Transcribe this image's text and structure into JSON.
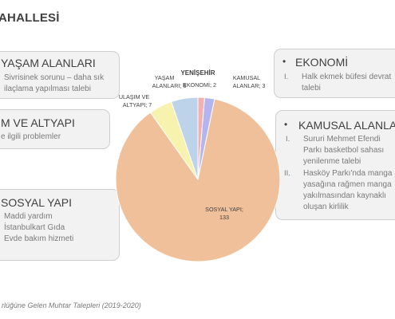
{
  "slide": {
    "title": "AHALLESİ",
    "footer": "rlüğüne Gelen Muhtar Talepleri (2019-2020)"
  },
  "boxes": {
    "yasam": {
      "heading": "YAŞAM ALANLARI",
      "line1": "Sivrisinek sorunu – daha sık",
      "line2": "ilaçlama yapılması talebi"
    },
    "altyapi": {
      "heading": "M VE ALTYAPI",
      "line1": "e ilgili problemler"
    },
    "sosyal": {
      "heading": "SOSYAL YAPI",
      "items": [
        "Maddi yardım",
        "İstanbulkart Gıda",
        "Evde bakım hizmeti"
      ]
    },
    "ekonomi": {
      "bullet": "•",
      "heading": "EKONOMİ",
      "numeral": "I.",
      "line1": "Halk ekmek büfesi devrat",
      "line2": "talebi"
    },
    "kamusal": {
      "bullet": "•",
      "heading": "KAMUSAL ALANLA",
      "n1": "I.",
      "n2": "II.",
      "item1": [
        "Sururi Mehmet Efendi",
        "Parkı basketbol sahası",
        "yenilenme talebi"
      ],
      "item2": [
        "Hasköy Parkı'nda manga",
        "yasağına rağmen manga",
        "yakılmasından kaynaklı",
        "oluşan kirlilik"
      ]
    }
  },
  "chart_data": {
    "type": "pie",
    "title": "YENİŞEHİR",
    "slices": [
      {
        "name": "EKONOMİ",
        "value": 2,
        "label": "EKONOMİ; 2",
        "color": "#f4b0b0"
      },
      {
        "name": "KAMUSAL ALANLAR",
        "value": 3,
        "label_line1": "KAMUSAL",
        "label_line2": "ALANLAR; 3",
        "color": "#b4b4ee"
      },
      {
        "name": "SOSYAL YAPI",
        "value": 133,
        "label_line1": "SOSYAL YAPI;",
        "label_line2": "133",
        "color": "#efc09a"
      },
      {
        "name": "ULAŞIM VE ALTYAPI",
        "value": 7,
        "label_line1": "ULAŞIM VE",
        "label_line2": "ALTYAPI; 7",
        "color": "#f7f3ae"
      },
      {
        "name": "YAŞAM ALANLARI",
        "value": 8,
        "label_line1": "YAŞAM",
        "label_line2": "ALANLARI; 8",
        "color": "#bcd3ea"
      }
    ]
  }
}
